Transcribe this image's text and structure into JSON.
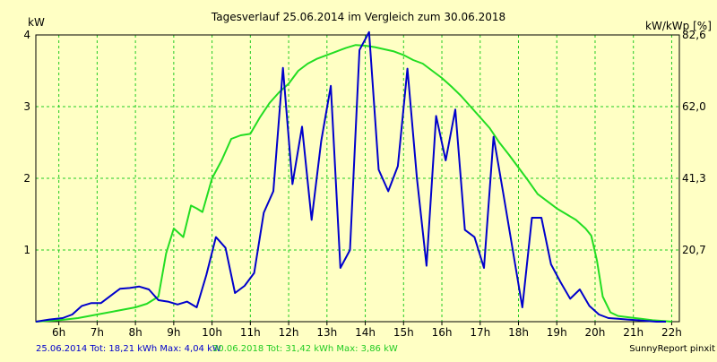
{
  "chart_data": {
    "type": "line",
    "title": "Tagesverlauf 25.06.2014 im Vergleich zum 30.06.2018",
    "ylabel_left": "kW",
    "ylabel_right": "kW/kWp [%]",
    "xlim": [
      5.4,
      22.2
    ],
    "ylim": [
      0,
      4
    ],
    "x_ticks": [
      {
        "x": 6,
        "label": "6h"
      },
      {
        "x": 7,
        "label": "7h"
      },
      {
        "x": 8,
        "label": "8h"
      },
      {
        "x": 9,
        "label": "9h"
      },
      {
        "x": 10,
        "label": "10h"
      },
      {
        "x": 11,
        "label": "11h"
      },
      {
        "x": 12,
        "label": "12h"
      },
      {
        "x": 13,
        "label": "13h"
      },
      {
        "x": 14,
        "label": "14h"
      },
      {
        "x": 15,
        "label": "15h"
      },
      {
        "x": 16,
        "label": "16h"
      },
      {
        "x": 17,
        "label": "17h"
      },
      {
        "x": 18,
        "label": "18h"
      },
      {
        "x": 19,
        "label": "19h"
      },
      {
        "x": 20,
        "label": "20h"
      },
      {
        "x": 21,
        "label": "21h"
      },
      {
        "x": 22,
        "label": "22h"
      }
    ],
    "y_left_ticks": [
      {
        "y": 1,
        "label": "1"
      },
      {
        "y": 2,
        "label": "2"
      },
      {
        "y": 3,
        "label": "3"
      },
      {
        "y": 4,
        "label": "4"
      }
    ],
    "y_right_ticks": [
      {
        "y": 1,
        "label": "20,7"
      },
      {
        "y": 2,
        "label": "41,3"
      },
      {
        "y": 3,
        "label": "62,0"
      },
      {
        "y": 4,
        "label": "82,6"
      }
    ],
    "grid": true,
    "series": [
      {
        "color": "#0000cc",
        "x": [
          5.4,
          5.75,
          6.1,
          6.35,
          6.6,
          6.85,
          7.1,
          7.35,
          7.6,
          7.85,
          8.1,
          8.35,
          8.6,
          8.85,
          9.1,
          9.35,
          9.6,
          9.85,
          10.1,
          10.35,
          10.6,
          10.85,
          11.1,
          11.35,
          11.6,
          11.85,
          12.1,
          12.35,
          12.6,
          12.85,
          13.1,
          13.35,
          13.6,
          13.85,
          14.1,
          14.35,
          14.6,
          14.85,
          15.1,
          15.35,
          15.6,
          15.85,
          16.1,
          16.35,
          16.6,
          16.85,
          17.1,
          17.35,
          17.6,
          17.85,
          18.1,
          18.35,
          18.6,
          18.85,
          19.1,
          19.35,
          19.6,
          19.85,
          20.1,
          20.35,
          20.6,
          20.85,
          21.1,
          21.35,
          21.6,
          21.85
        ],
        "y": [
          0.0,
          0.03,
          0.05,
          0.1,
          0.22,
          0.26,
          0.26,
          0.36,
          0.46,
          0.47,
          0.49,
          0.45,
          0.3,
          0.28,
          0.24,
          0.28,
          0.2,
          0.65,
          1.18,
          1.03,
          0.4,
          0.5,
          0.68,
          1.52,
          1.82,
          3.54,
          1.92,
          2.72,
          1.42,
          2.52,
          3.29,
          0.75,
          1.0,
          3.79,
          4.04,
          2.12,
          1.82,
          2.17,
          3.53,
          2.0,
          0.78,
          2.87,
          2.25,
          2.96,
          1.28,
          1.18,
          0.75,
          2.58,
          1.8,
          1.0,
          0.2,
          1.45,
          1.45,
          0.8,
          0.55,
          0.32,
          0.45,
          0.22,
          0.1,
          0.05,
          0.04,
          0.03,
          0.02,
          0.01,
          0.0,
          0.0
        ]
      },
      {
        "color": "#22dd22",
        "x": [
          5.4,
          6.0,
          6.5,
          7.0,
          7.5,
          8.0,
          8.3,
          8.6,
          8.8,
          9.0,
          9.25,
          9.45,
          9.6,
          9.75,
          10.0,
          10.25,
          10.5,
          10.75,
          11.0,
          11.25,
          11.5,
          11.75,
          12.0,
          12.25,
          12.5,
          12.75,
          13.0,
          13.25,
          13.5,
          13.75,
          14.0,
          14.25,
          14.5,
          14.75,
          15.0,
          15.25,
          15.5,
          15.75,
          16.0,
          16.25,
          16.5,
          16.75,
          17.0,
          17.25,
          17.5,
          17.75,
          18.0,
          18.25,
          18.5,
          18.75,
          19.0,
          19.25,
          19.5,
          19.75,
          19.9,
          20.05,
          20.2,
          20.4,
          20.6,
          20.9,
          21.2,
          21.5,
          21.8,
          22.0
        ],
        "y": [
          0.0,
          0.02,
          0.05,
          0.1,
          0.15,
          0.2,
          0.25,
          0.35,
          0.95,
          1.3,
          1.18,
          1.62,
          1.58,
          1.53,
          2.0,
          2.25,
          2.55,
          2.6,
          2.62,
          2.85,
          3.05,
          3.2,
          3.32,
          3.5,
          3.6,
          3.67,
          3.72,
          3.77,
          3.82,
          3.86,
          3.85,
          3.83,
          3.8,
          3.77,
          3.72,
          3.65,
          3.6,
          3.5,
          3.4,
          3.28,
          3.15,
          3.0,
          2.85,
          2.7,
          2.5,
          2.33,
          2.15,
          1.97,
          1.78,
          1.68,
          1.58,
          1.5,
          1.42,
          1.3,
          1.2,
          0.85,
          0.35,
          0.13,
          0.08,
          0.06,
          0.04,
          0.02,
          0.01,
          0.0
        ]
      }
    ]
  },
  "footer": {
    "series1_summary": "25.06.2014 Tot: 18,21 kWh Max: 4,04 kW",
    "series2_summary": "30.06.2018 Tot: 31,42 kWh Max: 3,86 kW",
    "credit": "SunnyReport pinxit"
  }
}
